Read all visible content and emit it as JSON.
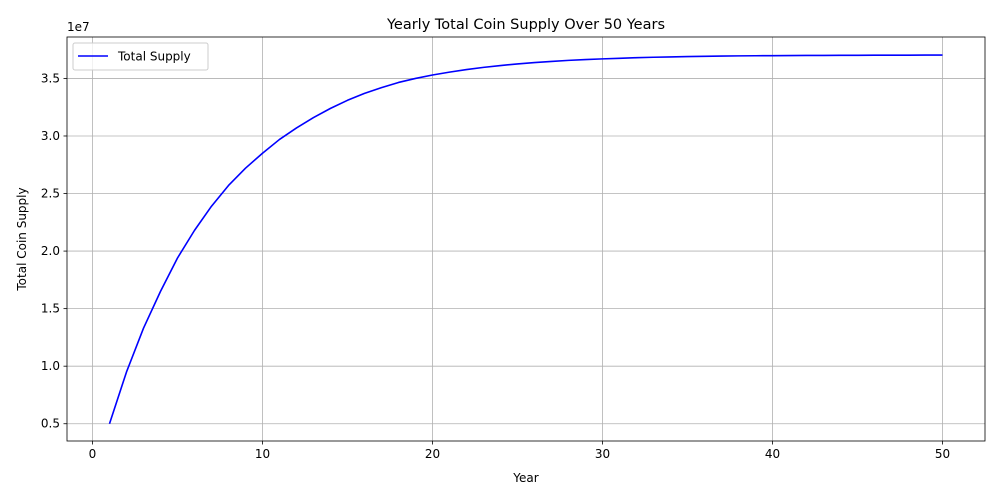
{
  "chart_data": {
    "type": "line",
    "title": "Yearly Total Coin Supply Over 50 Years",
    "xlabel": "Year",
    "ylabel": "Total Coin Supply",
    "y_offset_label": "1e7",
    "xlim": [
      -1.5,
      52.5
    ],
    "ylim": [
      0.35,
      3.86
    ],
    "x_ticks": [
      0,
      10,
      20,
      30,
      40,
      50
    ],
    "x_tick_labels": [
      "0",
      "10",
      "20",
      "30",
      "40",
      "50"
    ],
    "y_ticks": [
      0.5,
      1.0,
      1.5,
      2.0,
      2.5,
      3.0,
      3.5
    ],
    "y_tick_labels": [
      "0.5",
      "1.0",
      "1.5",
      "2.0",
      "2.5",
      "3.0",
      "3.5"
    ],
    "grid": true,
    "legend_position": "upper-left",
    "series": [
      {
        "name": "Total Supply",
        "color": "#0000ff",
        "x": [
          1,
          2,
          3,
          4,
          5,
          6,
          7,
          8,
          9,
          10,
          11,
          12,
          13,
          14,
          15,
          16,
          17,
          18,
          19,
          20,
          21,
          22,
          23,
          24,
          25,
          26,
          27,
          28,
          29,
          30,
          31,
          32,
          33,
          34,
          35,
          36,
          37,
          38,
          39,
          40,
          41,
          42,
          43,
          44,
          45,
          46,
          47,
          48,
          49,
          50
        ],
        "y": [
          0.5,
          0.95,
          1.33,
          1.65,
          1.94,
          2.18,
          2.39,
          2.57,
          2.72,
          2.85,
          2.97,
          3.07,
          3.16,
          3.24,
          3.31,
          3.37,
          3.42,
          3.465,
          3.5,
          3.53,
          3.555,
          3.577,
          3.596,
          3.612,
          3.626,
          3.638,
          3.648,
          3.657,
          3.664,
          3.67,
          3.675,
          3.68,
          3.684,
          3.687,
          3.69,
          3.692,
          3.694,
          3.696,
          3.697,
          3.698,
          3.699,
          3.7,
          3.7,
          3.701,
          3.701,
          3.702,
          3.702,
          3.702,
          3.703,
          3.703
        ]
      }
    ]
  }
}
